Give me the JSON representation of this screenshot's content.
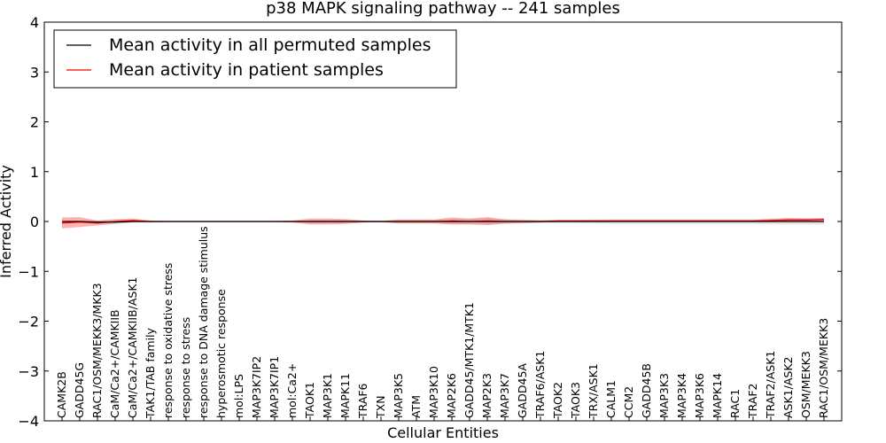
{
  "chart_data": {
    "type": "line",
    "title": "p38 MAPK signaling pathway -- 241 samples",
    "xlabel": "Cellular Entities",
    "ylabel": "Inferred Activity",
    "ylim": [
      -4,
      4
    ],
    "yticks": [
      "−4",
      "−3",
      "−2",
      "−1",
      "0",
      "1",
      "2",
      "3",
      "4"
    ],
    "yticks_values": [
      -4,
      -3,
      -2,
      -1,
      0,
      1,
      2,
      3,
      4
    ],
    "grid": false,
    "legend_position": "top-left",
    "categories": [
      "CAMK2B",
      "GADD45G",
      "RAC1/OSM/MEKK3/MKK3",
      "CaM/Ca2+/CAMKIIB",
      "CaM/Ca2+/CAMKIIB/ASK1",
      "TAK1/TAB family",
      "response to oxidative stress",
      "response to stress",
      "response to DNA damage stimulus",
      "hyperosmotic response",
      "mol:LPS",
      "MAP3K7IP2",
      "MAP3K7IP1",
      "mol:Ca2+",
      "TAOK1",
      "MAP3K1",
      "MAPK11",
      "TRAF6",
      "TXN",
      "MAP3K5",
      "ATM",
      "MAP3K10",
      "MAP2K6",
      "GADD45/MTK1/MTK1",
      "MAP2K3",
      "MAP3K7",
      "GADD45A",
      "TRAF6/ASK1",
      "TAOK2",
      "TAOK3",
      "TRX/ASK1",
      "CALM1",
      "CCM2",
      "GADD45B",
      "MAP3K3",
      "MAP3K4",
      "MAP3K6",
      "MAPK14",
      "RAC1",
      "TRAF2",
      "TRAF2/ASK1",
      "ASK1/ASK2",
      "OSM/MEKK3",
      "RAC1/OSM/MEKK3"
    ],
    "series": [
      {
        "name": "Mean activity in all permuted samples",
        "color": "#000000",
        "values": [
          0,
          0,
          -0.01,
          -0.01,
          0,
          0,
          0,
          0,
          0,
          0,
          0,
          0,
          0,
          0,
          0,
          0,
          0,
          0,
          0,
          0,
          0,
          0,
          0,
          0,
          0,
          0,
          0,
          0,
          0,
          0,
          0,
          0,
          0,
          0,
          0,
          0,
          0,
          0,
          0,
          0,
          0,
          0,
          0,
          0
        ],
        "band": [
          0.01,
          0.01,
          0.02,
          0.02,
          0.01,
          0.01,
          0.01,
          0.01,
          0.01,
          0.01,
          0.01,
          0.01,
          0.01,
          0.01,
          0.03,
          0.03,
          0.03,
          0.02,
          0.02,
          0.03,
          0.03,
          0.03,
          0.05,
          0.05,
          0.06,
          0.05,
          0.04,
          0.03,
          0.03,
          0.03,
          0.04,
          0.05,
          0.05,
          0.05,
          0.05,
          0.05,
          0.05,
          0.05,
          0.05,
          0.05,
          0.06,
          0.06,
          0.06,
          0.06
        ]
      },
      {
        "name": "Mean activity in patient samples",
        "color": "#ff0000",
        "values": [
          -0.03,
          -0.01,
          -0.03,
          0,
          0.02,
          0,
          0,
          0,
          0,
          0,
          0,
          0,
          0,
          0,
          0,
          0,
          0,
          0,
          0,
          0,
          0,
          0,
          0.01,
          0,
          0.01,
          0,
          0,
          0,
          0.01,
          0.01,
          0.01,
          0.01,
          0.01,
          0.01,
          0.01,
          0.01,
          0.01,
          0.01,
          0.01,
          0.01,
          0.02,
          0.03,
          0.03,
          0.04
        ],
        "band": [
          0.11,
          0.1,
          0.05,
          0.05,
          0.04,
          0.02,
          0.01,
          0.01,
          0.01,
          0.01,
          0.01,
          0.01,
          0.01,
          0.02,
          0.06,
          0.06,
          0.05,
          0.02,
          0.01,
          0.04,
          0.04,
          0.04,
          0.07,
          0.06,
          0.08,
          0.04,
          0.03,
          0.02,
          0.02,
          0.02,
          0.02,
          0.02,
          0.02,
          0.02,
          0.02,
          0.02,
          0.02,
          0.02,
          0.02,
          0.02,
          0.03,
          0.04,
          0.03,
          0.03
        ]
      }
    ]
  }
}
